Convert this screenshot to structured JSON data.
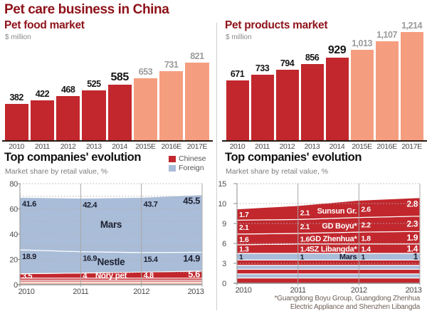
{
  "title": "Pet care business in China",
  "colors": {
    "actual_red": "#c1272d",
    "projected_salmon": "#f59e7f",
    "foreign_blue": "#a9bcd8",
    "others_pink": "#eec0b2",
    "title_maroon": "#8e1219",
    "axis_gray": "#9a9a9a",
    "text_gray": "#8a8a8a",
    "dark_label": "#1c2030",
    "light_label": "#ffffff"
  },
  "chart_data": [
    {
      "id": "pet-food-market",
      "type": "bar",
      "title": "Pet food market",
      "unit_label": "$ million",
      "categories": [
        "2010",
        "2011",
        "2012",
        "2013",
        "2014",
        "2015E",
        "2016E",
        "2017E"
      ],
      "values": [
        382,
        422,
        468,
        525,
        585,
        653,
        731,
        821
      ],
      "value_labels": [
        "382",
        "422",
        "468",
        "525",
        "585",
        "653",
        "731",
        "821"
      ],
      "actual_count": 5,
      "highlight_index": 4,
      "ylim": [
        0,
        821
      ]
    },
    {
      "id": "pet-products-market",
      "type": "bar",
      "title": "Pet products market",
      "unit_label": "$ million",
      "categories": [
        "2010",
        "2011",
        "2012",
        "2013",
        "2014",
        "2015E",
        "2016E",
        "2017E"
      ],
      "values": [
        671,
        733,
        794,
        856,
        929,
        1013,
        1107,
        1214
      ],
      "value_labels": [
        "671",
        "733",
        "794",
        "856",
        "929",
        "1,013",
        "1,107",
        "1,214"
      ],
      "actual_count": 5,
      "highlight_index": 4,
      "ylim": [
        0,
        1214
      ]
    },
    {
      "id": "pet-food-top-companies",
      "type": "area",
      "title": "Top companies' evolution",
      "subtitle": "Market share by retail value, %",
      "legend": [
        {
          "label": "Chinese",
          "color_key": "actual_red"
        },
        {
          "label": "Foreign",
          "color_key": "foreign_blue"
        }
      ],
      "x": [
        "2010",
        "2011",
        "2012",
        "2013"
      ],
      "ylim": [
        0,
        80
      ],
      "ytick_labels": [
        "80",
        "60",
        "40",
        "20",
        "0"
      ],
      "series_bottom_up": [
        {
          "name": "",
          "color_key": "others_pink",
          "values": [
            2.2,
            2.2,
            2.2,
            2.2
          ]
        },
        {
          "name": "",
          "color_key": "actual_red",
          "values": [
            1.4,
            1.4,
            1.4,
            1.4
          ]
        },
        {
          "name": "",
          "color_key": "actual_red",
          "values": [
            1.6,
            1.6,
            1.6,
            1.6
          ]
        },
        {
          "name": "Nory pet",
          "color_key": "actual_red",
          "values": [
            3.5,
            4,
            4.8,
            5.6
          ],
          "value_labels": [
            "3.5",
            "4",
            "4.8",
            "5.6"
          ],
          "label_style": "light"
        },
        {
          "name": "Nestle",
          "color_key": "foreign_blue",
          "values": [
            18.9,
            16.9,
            15.4,
            14.9
          ],
          "value_labels": [
            "18.9",
            "16.9",
            "15.4",
            "14.9"
          ],
          "label_style": "dark"
        },
        {
          "name": "Mars",
          "color_key": "foreign_blue",
          "values": [
            41.6,
            42.4,
            43.7,
            45.5
          ],
          "value_labels": [
            "41.6",
            "42.4",
            "43.7",
            "45.5"
          ],
          "label_style": "dark"
        }
      ]
    },
    {
      "id": "pet-products-top-companies",
      "type": "area",
      "title": "Top companies' evolution",
      "subtitle": "Market share by retail value, %",
      "x": [
        "2010",
        "2011",
        "2012",
        "2013"
      ],
      "ylim": [
        0,
        15
      ],
      "ytick_labels": [
        "15",
        "10",
        "9",
        "6",
        "3",
        "0"
      ],
      "footnote_line1": "*Guangdong Boyu Group, Guangdong Zhenhua",
      "footnote_line2": "Electric Appliance and Shenzhen Libangda",
      "series_bottom_up": [
        {
          "name": "",
          "color_key": "actual_red",
          "values": [
            0.8,
            0.8,
            0.8,
            0.8
          ]
        },
        {
          "name": "",
          "color_key": "foreign_blue",
          "values": [
            0.6,
            0.6,
            0.6,
            0.6
          ]
        },
        {
          "name": "",
          "color_key": "actual_red",
          "values": [
            0.7,
            0.7,
            0.7,
            0.7
          ]
        },
        {
          "name": "",
          "color_key": "foreign_blue",
          "values": [
            0.6,
            0.6,
            0.6,
            0.6
          ]
        },
        {
          "name": "",
          "color_key": "actual_red",
          "values": [
            0.8,
            0.8,
            0.8,
            0.8
          ]
        },
        {
          "name": "Mars",
          "color_key": "foreign_blue",
          "values": [
            1,
            1,
            1,
            1
          ],
          "value_labels": [
            "1",
            "1",
            "1",
            "1"
          ],
          "label_style": "dark"
        },
        {
          "name": "SZ Libangda*",
          "color_key": "actual_red",
          "values": [
            1.3,
            1.4,
            1.4,
            1.4
          ],
          "value_labels": [
            "1.3",
            "1.4",
            "1.4",
            "1.4"
          ],
          "label_style": "light"
        },
        {
          "name": "GD Zhenhua*",
          "color_key": "actual_red",
          "values": [
            1.6,
            1.6,
            1.8,
            1.9
          ],
          "value_labels": [
            "1.6",
            "1.6",
            "1.8",
            "1.9"
          ],
          "label_style": "light"
        },
        {
          "name": "GD Boyu*",
          "color_key": "actual_red",
          "values": [
            2.1,
            2.1,
            2.2,
            2.3
          ],
          "value_labels": [
            "2.1",
            "2.1",
            "2.2",
            "2.3"
          ],
          "label_style": "light"
        },
        {
          "name": "Sunsun Gr.",
          "color_key": "actual_red",
          "values": [
            1.7,
            2.1,
            2.6,
            2.8
          ],
          "value_labels": [
            "1.7",
            "2.1",
            "2.6",
            "2.8"
          ],
          "label_style": "light"
        }
      ]
    }
  ]
}
